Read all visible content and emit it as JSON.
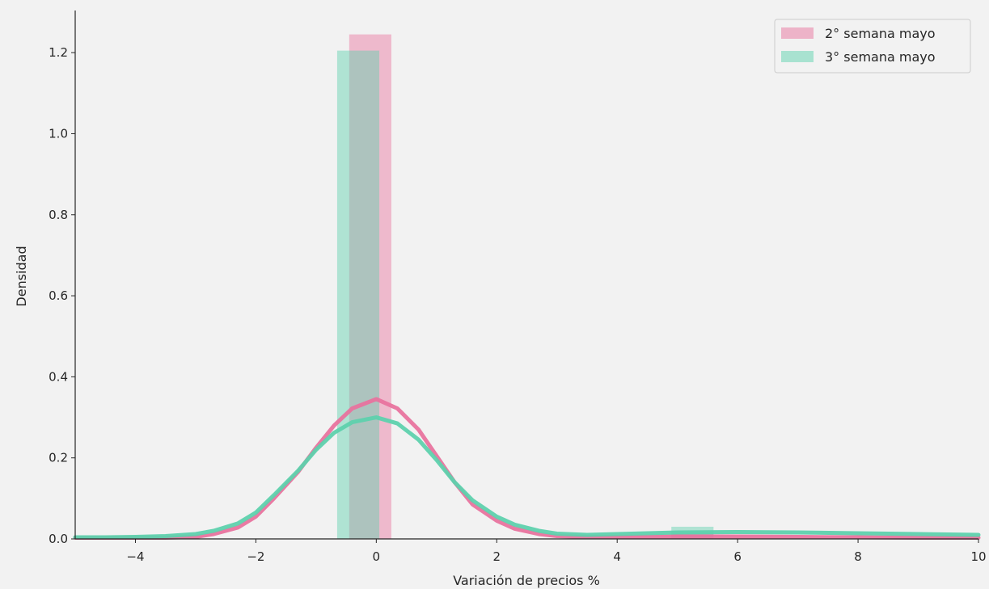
{
  "chart_data": {
    "type": "bar",
    "xlabel": "Variación de precios %",
    "ylabel": "Densidad",
    "xlim": [
      -5,
      10
    ],
    "ylim": [
      0,
      1.3
    ],
    "grid": false,
    "legend_position": "top-right",
    "x_ticks": [
      -4,
      -2,
      0,
      2,
      4,
      6,
      8,
      10
    ],
    "x_tick_labels": [
      "−4",
      "−2",
      "0",
      "2",
      "4",
      "6",
      "8",
      "10"
    ],
    "y_ticks": [
      0.0,
      0.2,
      0.4,
      0.6,
      0.8,
      1.0,
      1.2
    ],
    "y_tick_labels": [
      "0.0",
      "0.2",
      "0.4",
      "0.6",
      "0.8",
      "1.0",
      "1.2"
    ],
    "series": [
      {
        "name": "2° semana mayo",
        "color": "#e8739e",
        "histogram": [
          {
            "x0": -0.45,
            "x1": 0.25,
            "y": 1.245
          },
          {
            "x0": 4.9,
            "x1": 5.6,
            "y": 0.015
          }
        ],
        "kde": {
          "x": [
            -5,
            -4.5,
            -4,
            -3.5,
            -3,
            -2.7,
            -2.3,
            -2,
            -1.7,
            -1.3,
            -1,
            -0.7,
            -0.4,
            0,
            0.35,
            0.7,
            1.0,
            1.3,
            1.6,
            2.0,
            2.3,
            2.7,
            3.0,
            3.5,
            4,
            5,
            6,
            7,
            8,
            9,
            10
          ],
          "y": [
            0.003,
            0.003,
            0.003,
            0.003,
            0.005,
            0.012,
            0.028,
            0.055,
            0.1,
            0.165,
            0.225,
            0.28,
            0.322,
            0.345,
            0.322,
            0.27,
            0.205,
            0.14,
            0.085,
            0.045,
            0.025,
            0.012,
            0.007,
            0.005,
            0.005,
            0.006,
            0.006,
            0.005,
            0.004,
            0.003,
            0.003
          ]
        }
      },
      {
        "name": "3° semana mayo",
        "color": "#5ed1ad",
        "histogram": [
          {
            "x0": -0.65,
            "x1": 0.05,
            "y": 1.205
          },
          {
            "x0": 4.9,
            "x1": 5.6,
            "y": 0.03
          }
        ],
        "kde": {
          "x": [
            -5,
            -4.5,
            -4,
            -3.5,
            -3,
            -2.7,
            -2.3,
            -2,
            -1.7,
            -1.3,
            -1,
            -0.7,
            -0.4,
            0,
            0.35,
            0.7,
            1.0,
            1.3,
            1.6,
            2.0,
            2.3,
            2.7,
            3.0,
            3.5,
            4,
            5,
            6,
            7,
            8,
            9,
            10
          ],
          "y": [
            0.004,
            0.004,
            0.005,
            0.007,
            0.012,
            0.02,
            0.038,
            0.065,
            0.108,
            0.168,
            0.22,
            0.262,
            0.288,
            0.3,
            0.285,
            0.245,
            0.195,
            0.14,
            0.095,
            0.055,
            0.035,
            0.02,
            0.013,
            0.01,
            0.012,
            0.016,
            0.017,
            0.016,
            0.014,
            0.012,
            0.01
          ]
        }
      }
    ]
  }
}
